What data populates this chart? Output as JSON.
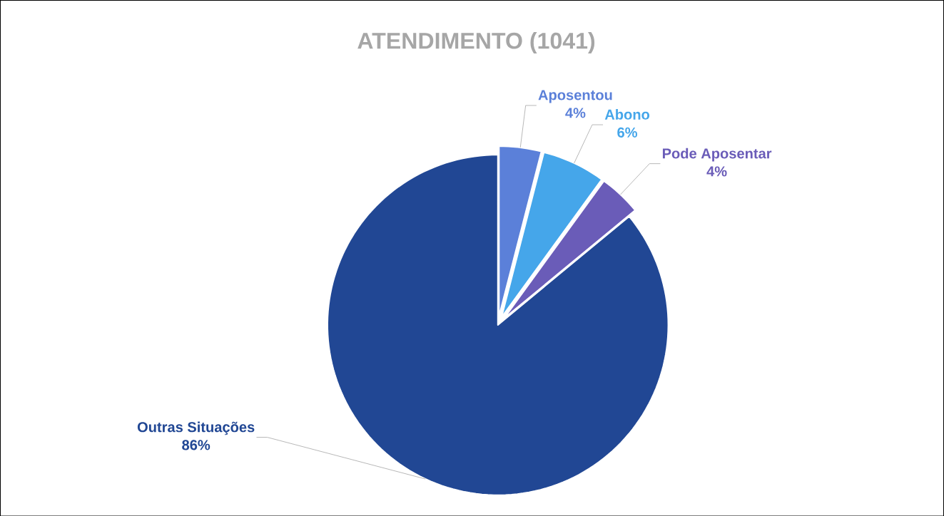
{
  "chart_data": {
    "type": "pie",
    "title": "ATENDIMENTO (1041)",
    "categories": [
      "Aposentou",
      "Abono",
      "Pode Aposentar",
      "Outras Situações"
    ],
    "values": [
      4,
      6,
      4,
      86
    ],
    "value_labels": [
      "4%",
      "6%",
      "4%",
      "86%"
    ],
    "colors": [
      "#5b80d9",
      "#45a6ea",
      "#6a5cb8",
      "#214794"
    ]
  }
}
